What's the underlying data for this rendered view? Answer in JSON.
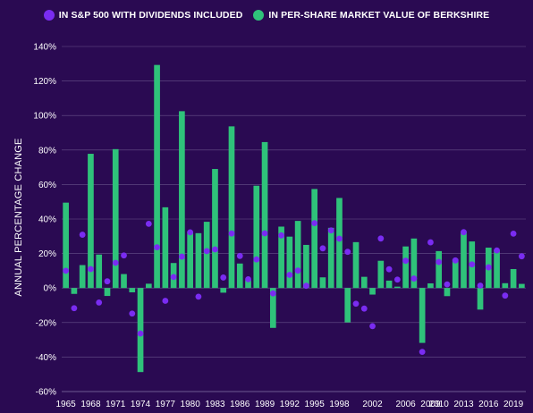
{
  "legend": {
    "sp500_label": "IN S&P 500 WITH DIVIDENDS INCLUDED",
    "brk_label": "IN PER-SHARE MARKET VALUE OF BERKSHIRE"
  },
  "colors": {
    "background": "#2a0a52",
    "sp500": "#7a2cf2",
    "berkshire": "#2fc27a",
    "grid": "#8a7aa8"
  },
  "chart_data": {
    "type": "bar",
    "title": "",
    "xlabel": "",
    "ylabel": "ANNUAL PERCENTAGE CHANGE",
    "ylim": [
      -60,
      140
    ],
    "yticks": [
      -60,
      -40,
      -20,
      0,
      20,
      40,
      60,
      80,
      100,
      120,
      140
    ],
    "ytick_labels": [
      "-60%",
      "-40%",
      "-20%",
      "0%",
      "20%",
      "40%",
      "60%",
      "80%",
      "100%",
      "120%",
      "140%"
    ],
    "xtick_years": [
      1965,
      1968,
      1971,
      1974,
      1977,
      1980,
      1983,
      1986,
      1989,
      1992,
      1995,
      1998,
      2002,
      2006,
      2009,
      2010,
      2013,
      2016,
      2019
    ],
    "xtick_labels": [
      "1965",
      "1968",
      "1971",
      "1974",
      "1977",
      "1980",
      "1983",
      "1986",
      "1989",
      "1992",
      "1995",
      "1998",
      "2002",
      "2006",
      "2009",
      "2010",
      "2013",
      "2016",
      "2019"
    ],
    "grid": true,
    "legend_position": "top",
    "years": [
      1965,
      1966,
      1967,
      1968,
      1969,
      1970,
      1971,
      1972,
      1973,
      1974,
      1975,
      1976,
      1977,
      1978,
      1979,
      1980,
      1981,
      1982,
      1983,
      1984,
      1985,
      1986,
      1987,
      1988,
      1989,
      1990,
      1991,
      1992,
      1993,
      1994,
      1995,
      1996,
      1997,
      1998,
      1999,
      2000,
      2001,
      2002,
      2003,
      2004,
      2005,
      2006,
      2007,
      2008,
      2009,
      2010,
      2011,
      2012,
      2013,
      2014,
      2015,
      2016,
      2017,
      2018,
      2019,
      2020
    ],
    "series": [
      {
        "name": "IN PER-SHARE MARKET VALUE OF BERKSHIRE",
        "kind": "bar",
        "values": [
          49.5,
          -3.4,
          13.3,
          77.8,
          19.4,
          -4.6,
          80.5,
          8.1,
          -2.5,
          -48.7,
          2.5,
          129.3,
          46.8,
          14.5,
          102.5,
          32.8,
          31.8,
          38.4,
          69.0,
          -2.7,
          93.7,
          14.2,
          4.6,
          59.3,
          84.6,
          -23.1,
          35.6,
          29.8,
          38.9,
          25.0,
          57.4,
          6.2,
          34.9,
          52.2,
          -19.9,
          26.6,
          6.5,
          -3.8,
          15.8,
          4.3,
          0.8,
          24.1,
          28.7,
          -31.8,
          2.7,
          21.4,
          -4.7,
          16.8,
          32.7,
          27.0,
          -12.5,
          23.4,
          21.9,
          2.8,
          11.0,
          2.4
        ]
      },
      {
        "name": "IN S&P 500 WITH DIVIDENDS INCLUDED",
        "kind": "dot",
        "values": [
          10.0,
          -11.7,
          30.9,
          11.0,
          -8.4,
          3.9,
          14.6,
          18.9,
          -14.8,
          -26.4,
          37.2,
          23.6,
          -7.4,
          6.4,
          18.2,
          32.3,
          -5.0,
          21.4,
          22.4,
          6.1,
          31.6,
          18.6,
          5.1,
          16.6,
          31.7,
          -3.1,
          30.5,
          7.6,
          10.1,
          1.3,
          37.6,
          23.0,
          33.4,
          28.6,
          21.0,
          -9.1,
          -11.9,
          -22.1,
          28.7,
          10.9,
          4.9,
          15.8,
          5.5,
          -37.0,
          26.5,
          15.1,
          2.1,
          16.0,
          32.4,
          13.7,
          1.4,
          12.0,
          21.8,
          -4.4,
          31.5,
          18.4
        ]
      }
    ]
  }
}
